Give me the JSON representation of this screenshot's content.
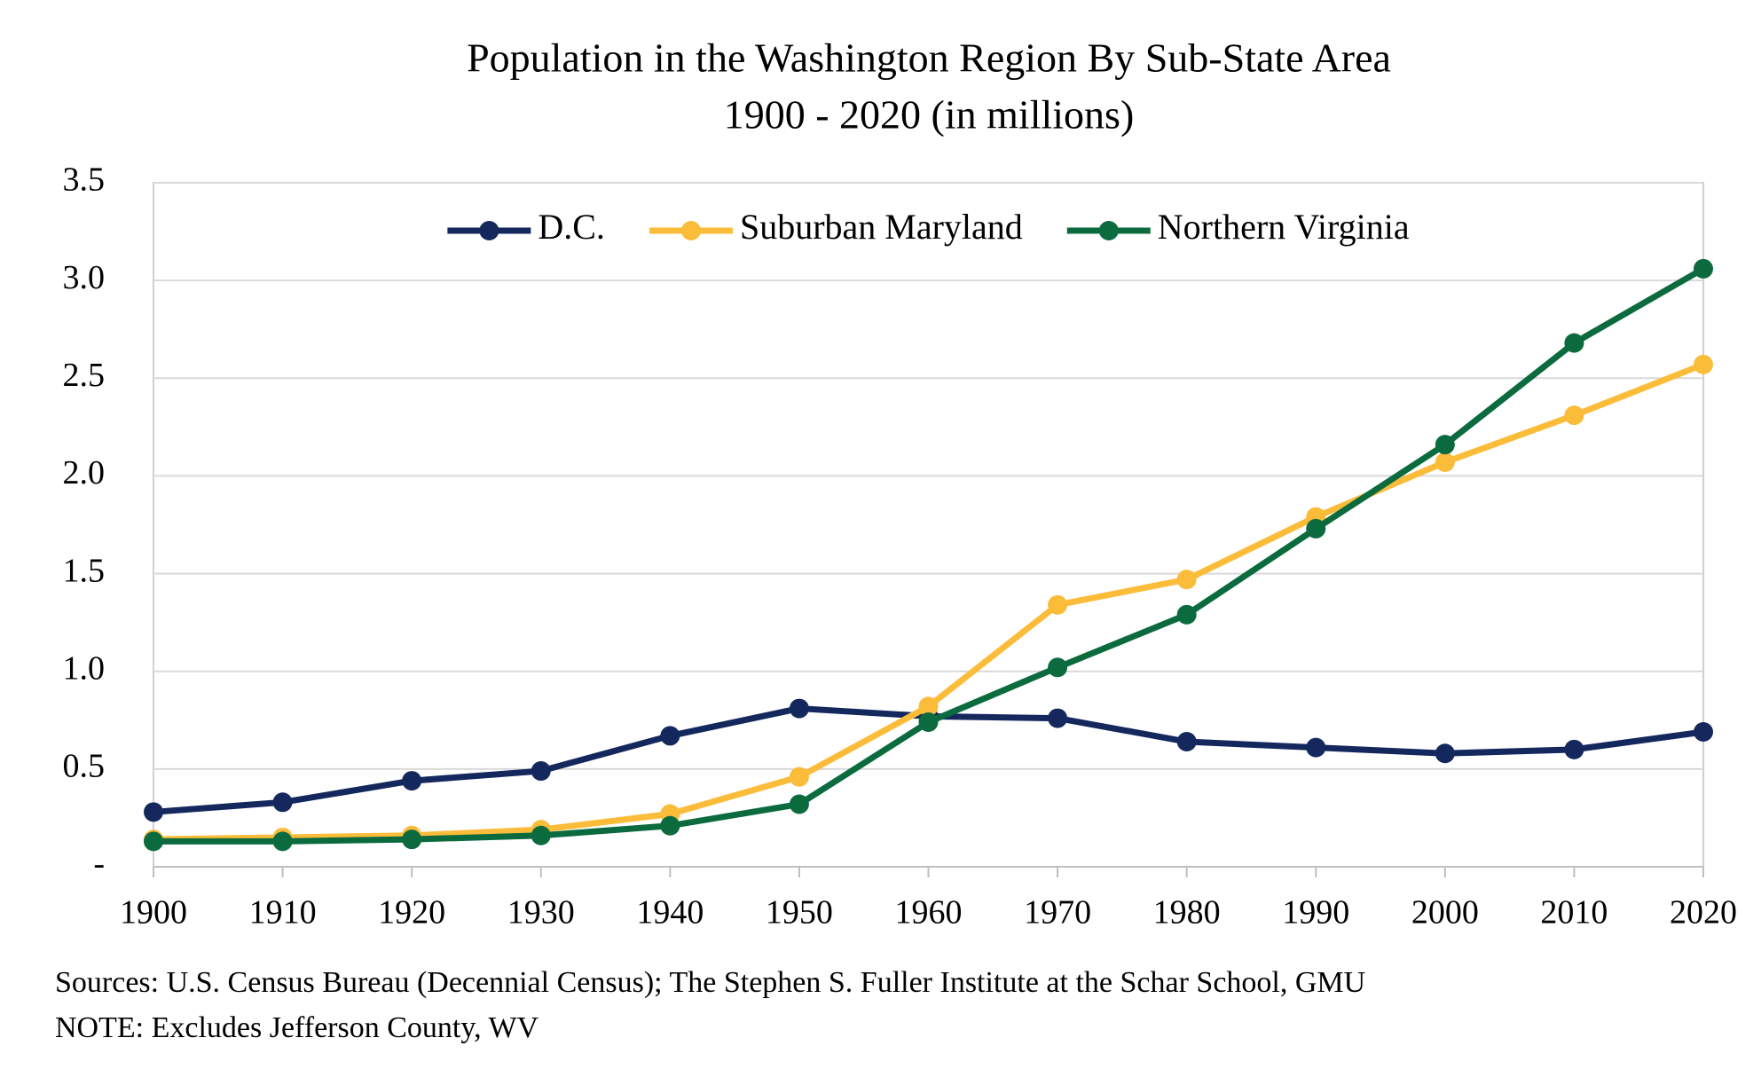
{
  "chart_data": {
    "type": "line",
    "title": "Population in the Washington Region By Sub-State Area",
    "subtitle": "1900 - 2020 (in millions)",
    "x": [
      1900,
      1910,
      1920,
      1930,
      1940,
      1950,
      1960,
      1970,
      1980,
      1990,
      2000,
      2010,
      2020
    ],
    "xlim": [
      1900,
      2020
    ],
    "xticks": [
      1900,
      1910,
      1920,
      1930,
      1940,
      1950,
      1960,
      1970,
      1980,
      1990,
      2000,
      2010,
      2020
    ],
    "ylim": [
      0,
      3.5
    ],
    "yticks": [
      {
        "value": 0,
        "label": "-"
      },
      0.5,
      {
        "value": 1,
        "label": "1.0"
      },
      1.5,
      {
        "value": 2,
        "label": "2.0"
      },
      2.5,
      {
        "value": 3,
        "label": "3.0"
      },
      3.5
    ],
    "grid": true,
    "legend": "top",
    "series": [
      {
        "name": "D.C.",
        "color": "#14285e",
        "values": [
          0.28,
          0.33,
          0.44,
          0.49,
          0.67,
          0.81,
          0.77,
          0.76,
          0.64,
          0.61,
          0.58,
          0.6,
          0.69
        ]
      },
      {
        "name": "Suburban Maryland",
        "color": "#fbbc3a",
        "values": [
          0.14,
          0.15,
          0.16,
          0.19,
          0.27,
          0.46,
          0.82,
          1.34,
          1.47,
          1.79,
          2.07,
          2.31,
          2.57
        ]
      },
      {
        "name": "Northern Virginia",
        "color": "#0b6b3f",
        "values": [
          0.13,
          0.13,
          0.14,
          0.16,
          0.21,
          0.32,
          0.74,
          1.02,
          1.29,
          1.73,
          2.16,
          2.68,
          3.06
        ]
      }
    ],
    "sources": "Sources: U.S. Census Bureau (Decennial Census); The Stephen S. Fuller Institute at the Schar School, GMU",
    "note": "NOTE: Excludes Jefferson County, WV"
  }
}
